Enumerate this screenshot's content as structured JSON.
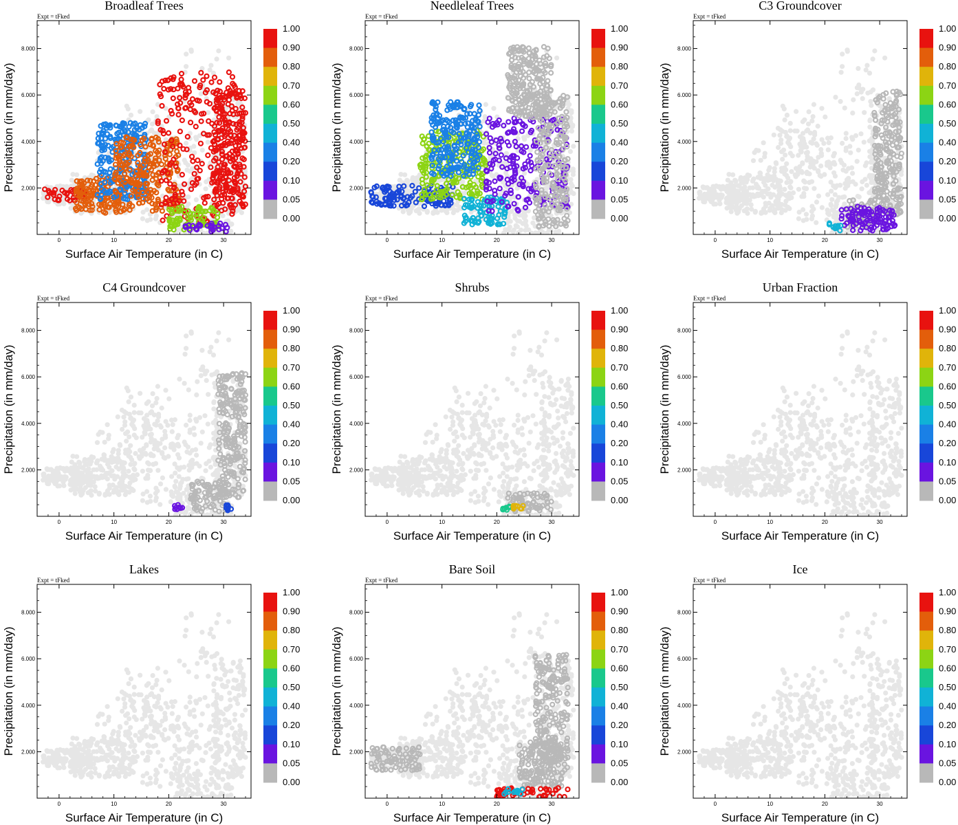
{
  "figure": {
    "expt_label": "Expt = tFked",
    "x_axis_label": "Surface Air Temperature (in C)",
    "y_axis_label": "Precipitation (in mm/day)",
    "x_ticks": [
      "0",
      "10",
      "20",
      "30"
    ],
    "y_ticks": [
      "2.000",
      "4.000",
      "6.000",
      "8.000"
    ],
    "colorbar_labels": [
      "1.00",
      "0.90",
      "0.80",
      "0.70",
      "0.60",
      "0.50",
      "0.40",
      "0.20",
      "0.10",
      "0.05",
      "0.00"
    ],
    "colorbar_colors": [
      "#e8120f",
      "#e35e0b",
      "#e0b40a",
      "#8cd414",
      "#19c88c",
      "#10b2d6",
      "#1a80e6",
      "#1846d9",
      "#6a14e0",
      "#b8b8b8"
    ],
    "background_point_color": "#e6e6e6"
  },
  "chart_data": [
    {
      "type": "scatter",
      "title": "Broadleaf Trees",
      "xlim": [
        -4,
        35
      ],
      "ylim": [
        0,
        9.2
      ],
      "clusters": [
        {
          "x": [
            -3,
            5
          ],
          "y": [
            1.45,
            1.95
          ],
          "value": 0.95
        },
        {
          "x": [
            3,
            13
          ],
          "y": [
            0.9,
            2.5
          ],
          "value": 0.85
        },
        {
          "x": [
            7,
            16
          ],
          "y": [
            1.5,
            4.8
          ],
          "value": 0.3
        },
        {
          "x": [
            10,
            22
          ],
          "y": [
            1.0,
            4.2
          ],
          "value": 0.82
        },
        {
          "x": [
            18,
            33
          ],
          "y": [
            0.5,
            7.0
          ],
          "value": 0.95
        },
        {
          "x": [
            28,
            34
          ],
          "y": [
            1.0,
            6.2
          ],
          "value": 0.95
        },
        {
          "x": [
            20,
            29
          ],
          "y": [
            0.2,
            1.2
          ],
          "value": 0.6
        },
        {
          "x": [
            23,
            31
          ],
          "y": [
            0.1,
            0.5
          ],
          "value": 0.07
        }
      ]
    },
    {
      "type": "scatter",
      "title": "Needleleaf Trees",
      "xlim": [
        -4,
        35
      ],
      "ylim": [
        0,
        9.2
      ],
      "clusters": [
        {
          "x": [
            -3,
            12
          ],
          "y": [
            1.2,
            2.1
          ],
          "value": 0.15
        },
        {
          "x": [
            6,
            18
          ],
          "y": [
            1.5,
            4.5
          ],
          "value": 0.6
        },
        {
          "x": [
            8,
            17
          ],
          "y": [
            2.5,
            5.7
          ],
          "value": 0.35
        },
        {
          "x": [
            14,
            22
          ],
          "y": [
            0.4,
            1.6
          ],
          "value": 0.45
        },
        {
          "x": [
            18,
            33
          ],
          "y": [
            1.0,
            5.0
          ],
          "value": 0.07
        },
        {
          "x": [
            27,
            33
          ],
          "y": [
            0.3,
            6.0
          ],
          "value": 0.0
        },
        {
          "x": [
            22,
            30
          ],
          "y": [
            5.0,
            8.1
          ],
          "value": 0.0
        }
      ]
    },
    {
      "type": "scatter",
      "title": "C3 Groundcover",
      "xlim": [
        -4,
        35
      ],
      "ylim": [
        0,
        9.2
      ],
      "clusters": [
        {
          "x": [
            29,
            34
          ],
          "y": [
            0.8,
            6.2
          ],
          "value": 0.0
        },
        {
          "x": [
            24,
            30
          ],
          "y": [
            0.3,
            1.5
          ],
          "value": 0.0
        },
        {
          "x": [
            23,
            33
          ],
          "y": [
            0.15,
            1.2
          ],
          "value": 0.07
        },
        {
          "x": [
            20,
            23.5
          ],
          "y": [
            0.15,
            0.5
          ],
          "value": 0.45
        }
      ]
    },
    {
      "type": "scatter",
      "title": "C4 Groundcover",
      "xlim": [
        -4,
        35
      ],
      "ylim": [
        0,
        9.2
      ],
      "clusters": [
        {
          "x": [
            29,
            34
          ],
          "y": [
            0.8,
            6.2
          ],
          "value": 0.0
        },
        {
          "x": [
            24,
            31
          ],
          "y": [
            0.2,
            1.5
          ],
          "value": 0.0
        },
        {
          "x": [
            21,
            22.5
          ],
          "y": [
            0.2,
            0.5
          ],
          "value": 0.07
        },
        {
          "x": [
            30,
            31.5
          ],
          "y": [
            0.2,
            0.5
          ],
          "value": 0.15
        }
      ]
    },
    {
      "type": "scatter",
      "title": "Shrubs",
      "xlim": [
        -4,
        35
      ],
      "ylim": [
        0,
        9.2
      ],
      "clusters": [
        {
          "x": [
            22,
            30
          ],
          "y": [
            0.2,
            1.0
          ],
          "value": 0.0
        },
        {
          "x": [
            21,
            23
          ],
          "y": [
            0.25,
            0.45
          ],
          "value": 0.5
        },
        {
          "x": [
            23,
            25
          ],
          "y": [
            0.3,
            0.5
          ],
          "value": 0.7
        }
      ]
    },
    {
      "type": "scatter",
      "title": "Urban Fraction",
      "xlim": [
        -4,
        35
      ],
      "ylim": [
        0,
        9.2
      ],
      "clusters": []
    },
    {
      "type": "scatter",
      "title": "Lakes",
      "xlim": [
        -4,
        35
      ],
      "ylim": [
        0,
        9.2
      ],
      "clusters": []
    },
    {
      "type": "scatter",
      "title": "Bare Soil",
      "xlim": [
        -4,
        35
      ],
      "ylim": [
        0,
        9.2
      ],
      "clusters": [
        {
          "x": [
            -3,
            6
          ],
          "y": [
            1.2,
            2.2
          ],
          "value": 0.0
        },
        {
          "x": [
            27,
            33
          ],
          "y": [
            1.0,
            6.2
          ],
          "value": 0.0
        },
        {
          "x": [
            24,
            32
          ],
          "y": [
            0.5,
            2.5
          ],
          "value": 0.0
        },
        {
          "x": [
            20,
            33
          ],
          "y": [
            0.05,
            0.45
          ],
          "value": 0.95
        },
        {
          "x": [
            21,
            26
          ],
          "y": [
            0.15,
            0.4
          ],
          "value": 0.4
        }
      ]
    },
    {
      "type": "scatter",
      "title": "Ice",
      "xlim": [
        -4,
        35
      ],
      "ylim": [
        0,
        9.2
      ],
      "clusters": []
    }
  ]
}
